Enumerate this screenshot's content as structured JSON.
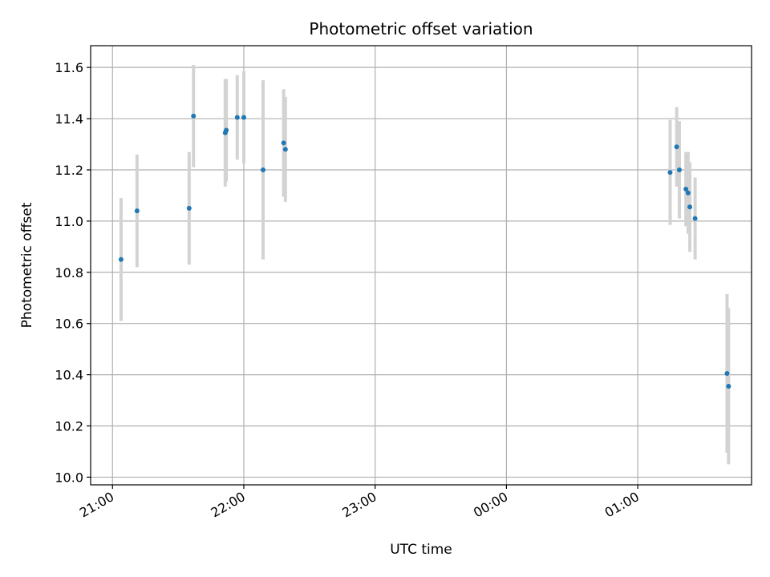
{
  "chart_data": {
    "type": "scatter",
    "title": "Photometric offset variation",
    "xlabel": "UTC time",
    "ylabel": "Photometric offset",
    "x_ticks": [
      "21:00",
      "22:00",
      "23:00",
      "00:00",
      "01:00"
    ],
    "x_tick_minutes": [
      1260,
      1320,
      1380,
      1440,
      1500
    ],
    "xlim_minutes": [
      1250,
      1552
    ],
    "ylim": [
      9.97,
      11.685
    ],
    "y_ticks": [
      10.0,
      10.2,
      10.4,
      10.6,
      10.8,
      11.0,
      11.2,
      11.4,
      11.6
    ],
    "y_tick_labels": [
      "10.0",
      "10.2",
      "10.4",
      "10.6",
      "10.8",
      "11.0",
      "11.2",
      "11.4",
      "11.6"
    ],
    "grid": true,
    "colors": {
      "point": "#1f77b4",
      "errorbar": "#d3d3d3",
      "grid": "#b0b0b0"
    },
    "points": [
      {
        "t": 1263.9,
        "y": 10.85,
        "err": 0.24
      },
      {
        "t": 1271.2,
        "y": 11.04,
        "err": 0.22
      },
      {
        "t": 1295.0,
        "y": 11.05,
        "err": 0.22
      },
      {
        "t": 1297.0,
        "y": 11.41,
        "err": 0.2
      },
      {
        "t": 1311.5,
        "y": 11.345,
        "err": 0.21
      },
      {
        "t": 1312.0,
        "y": 11.355,
        "err": 0.2
      },
      {
        "t": 1317.0,
        "y": 11.405,
        "err": 0.165
      },
      {
        "t": 1320.0,
        "y": 11.405,
        "err": 0.18
      },
      {
        "t": 1328.8,
        "y": 11.2,
        "err": 0.35
      },
      {
        "t": 1338.2,
        "y": 11.305,
        "err": 0.21
      },
      {
        "t": 1339.0,
        "y": 11.28,
        "err": 0.205
      },
      {
        "t": 1514.8,
        "y": 11.19,
        "err": 0.205
      },
      {
        "t": 1517.8,
        "y": 11.29,
        "err": 0.155
      },
      {
        "t": 1519.0,
        "y": 11.2,
        "err": 0.19
      },
      {
        "t": 1522.0,
        "y": 11.125,
        "err": 0.145
      },
      {
        "t": 1523.0,
        "y": 11.11,
        "err": 0.16
      },
      {
        "t": 1523.8,
        "y": 11.055,
        "err": 0.175
      },
      {
        "t": 1526.2,
        "y": 11.01,
        "err": 0.16
      },
      {
        "t": 1540.8,
        "y": 10.405,
        "err": 0.31
      },
      {
        "t": 1541.5,
        "y": 10.355,
        "err": 0.305
      }
    ]
  }
}
